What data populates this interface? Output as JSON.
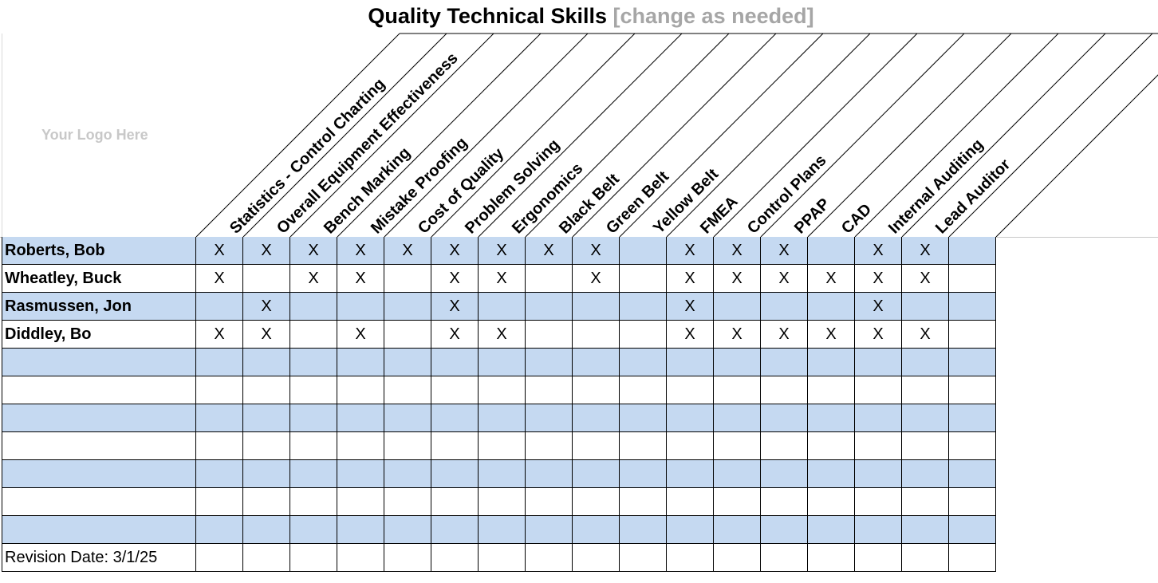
{
  "title": {
    "main": "Quality Technical Skills",
    "note": "[change as needed]"
  },
  "logo_placeholder": "Your Logo Here",
  "skills": [
    "Statistics - Control Charting",
    "Overall Equipment Effectiveness",
    "Bench Marking",
    "Mistake Proofing",
    "Cost of Quality",
    "Problem Solving",
    "Ergonomics",
    "Black Belt",
    "Green Belt",
    "Yellow Belt",
    "FMEA",
    "Control Plans",
    "PPAP",
    "CAD",
    "Internal Auditing",
    "Lead Auditor",
    ""
  ],
  "mark": "X",
  "rows": [
    {
      "name": "Roberts, Bob",
      "marks": [
        1,
        1,
        1,
        1,
        1,
        1,
        1,
        1,
        1,
        0,
        1,
        1,
        1,
        0,
        1,
        1,
        0
      ]
    },
    {
      "name": "Wheatley, Buck",
      "marks": [
        1,
        0,
        1,
        1,
        0,
        1,
        1,
        0,
        1,
        0,
        1,
        1,
        1,
        1,
        1,
        1,
        0
      ]
    },
    {
      "name": "Rasmussen, Jon",
      "marks": [
        0,
        1,
        0,
        0,
        0,
        1,
        0,
        0,
        0,
        0,
        1,
        0,
        0,
        0,
        1,
        0,
        0
      ]
    },
    {
      "name": "Diddley, Bo",
      "marks": [
        1,
        1,
        0,
        1,
        0,
        1,
        1,
        0,
        0,
        0,
        1,
        1,
        1,
        1,
        1,
        1,
        0
      ]
    },
    {
      "name": "",
      "marks": [
        0,
        0,
        0,
        0,
        0,
        0,
        0,
        0,
        0,
        0,
        0,
        0,
        0,
        0,
        0,
        0,
        0
      ]
    },
    {
      "name": "",
      "marks": [
        0,
        0,
        0,
        0,
        0,
        0,
        0,
        0,
        0,
        0,
        0,
        0,
        0,
        0,
        0,
        0,
        0
      ]
    },
    {
      "name": "",
      "marks": [
        0,
        0,
        0,
        0,
        0,
        0,
        0,
        0,
        0,
        0,
        0,
        0,
        0,
        0,
        0,
        0,
        0
      ]
    },
    {
      "name": "",
      "marks": [
        0,
        0,
        0,
        0,
        0,
        0,
        0,
        0,
        0,
        0,
        0,
        0,
        0,
        0,
        0,
        0,
        0
      ]
    },
    {
      "name": "",
      "marks": [
        0,
        0,
        0,
        0,
        0,
        0,
        0,
        0,
        0,
        0,
        0,
        0,
        0,
        0,
        0,
        0,
        0
      ]
    },
    {
      "name": "",
      "marks": [
        0,
        0,
        0,
        0,
        0,
        0,
        0,
        0,
        0,
        0,
        0,
        0,
        0,
        0,
        0,
        0,
        0
      ]
    },
    {
      "name": "",
      "marks": [
        0,
        0,
        0,
        0,
        0,
        0,
        0,
        0,
        0,
        0,
        0,
        0,
        0,
        0,
        0,
        0,
        0
      ]
    }
  ],
  "footer": {
    "revision": "Revision Date: 3/1/25"
  },
  "colors": {
    "band": "#c5d9f1",
    "grid": "#000000",
    "logo": "#c8c8c8",
    "note": "#a6a6a6"
  }
}
